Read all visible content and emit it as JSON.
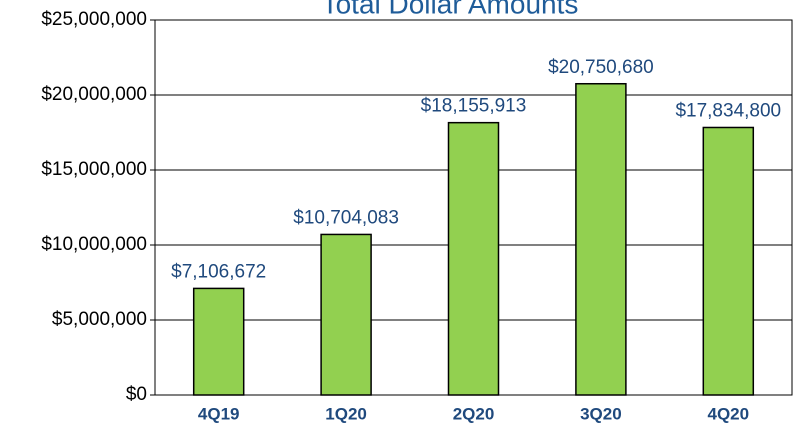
{
  "chart_data": {
    "type": "bar",
    "title": "Total Dollar Amounts",
    "categories": [
      "4Q19",
      "1Q20",
      "2Q20",
      "3Q20",
      "4Q20"
    ],
    "values": [
      7106672,
      10704083,
      18155913,
      20750680,
      17834800
    ],
    "value_labels": [
      "$7,106,672",
      "$10,704,083",
      "$18,155,913",
      "$20,750,680",
      "$17,834,800"
    ],
    "color": "#92d050",
    "ylim": [
      0,
      25000000
    ],
    "yticks": [
      {
        "value": 0,
        "label": "$0"
      },
      {
        "value": 5000000,
        "label": "$5,000,000"
      },
      {
        "value": 10000000,
        "label": "$10,000,000"
      },
      {
        "value": 15000000,
        "label": "$15,000,000"
      },
      {
        "value": 20000000,
        "label": "$20,000,000"
      },
      {
        "value": 25000000,
        "label": "$25,000,000"
      }
    ],
    "grid": true
  }
}
